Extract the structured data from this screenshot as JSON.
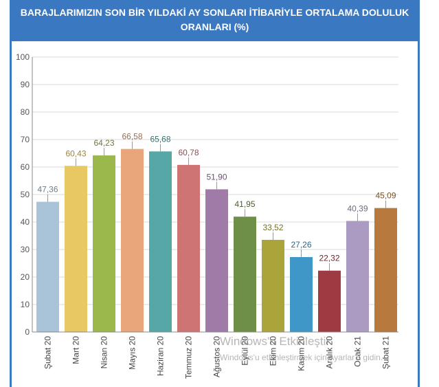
{
  "chart_data": {
    "type": "bar",
    "title": "BARAJLARIMIZIN SON BİR YILDAKİ AY SONLARI İTİBARİYLE ORTALAMA DOLULUK ORANLARI (%)",
    "categories": [
      "Şubat 20",
      "Mart 20",
      "Nisan 20",
      "Mayıs 20",
      "Haziran 20",
      "Temmuz 20",
      "Ağustos 20",
      "Eylül 20",
      "Ekim 20",
      "Kasım 20",
      "Aralık 20",
      "Ocak 21",
      "Şubat 21"
    ],
    "values": [
      47.36,
      60.43,
      64.23,
      66.58,
      65.68,
      60.78,
      51.9,
      41.95,
      33.52,
      27.26,
      22.32,
      40.39,
      45.09
    ],
    "value_labels": [
      "47,36",
      "60,43",
      "64,23",
      "66,58",
      "65,68",
      "60,78",
      "51,90",
      "41,95",
      "33,52",
      "27,26",
      "22,32",
      "40,39",
      "45,09"
    ],
    "colors": [
      "#a9c4d8",
      "#e8c862",
      "#9ab84c",
      "#e8a67a",
      "#56a8a6",
      "#cf7474",
      "#a07ba8",
      "#6e8f48",
      "#aaa43a",
      "#3f97c8",
      "#9e3a42",
      "#ab9bc2",
      "#b87a3c"
    ],
    "value_label_colors": [
      "#6b7d8a",
      "#9a8440",
      "#687c34",
      "#9a6e52",
      "#3a706e",
      "#8a4e4e",
      "#6a5270",
      "#4a5f30",
      "#727026",
      "#2a6586",
      "#6a272c",
      "#726882",
      "#7a5228"
    ],
    "ylim": [
      0,
      100
    ],
    "yticks": [
      0,
      10,
      20,
      30,
      40,
      50,
      60,
      70,
      80,
      90,
      100
    ],
    "grid": true
  },
  "watermark": {
    "title": "Windows'u Etkinleştir",
    "subtitle": "Windows'u etkinleştirmek için Ayarlar'a gidin."
  }
}
